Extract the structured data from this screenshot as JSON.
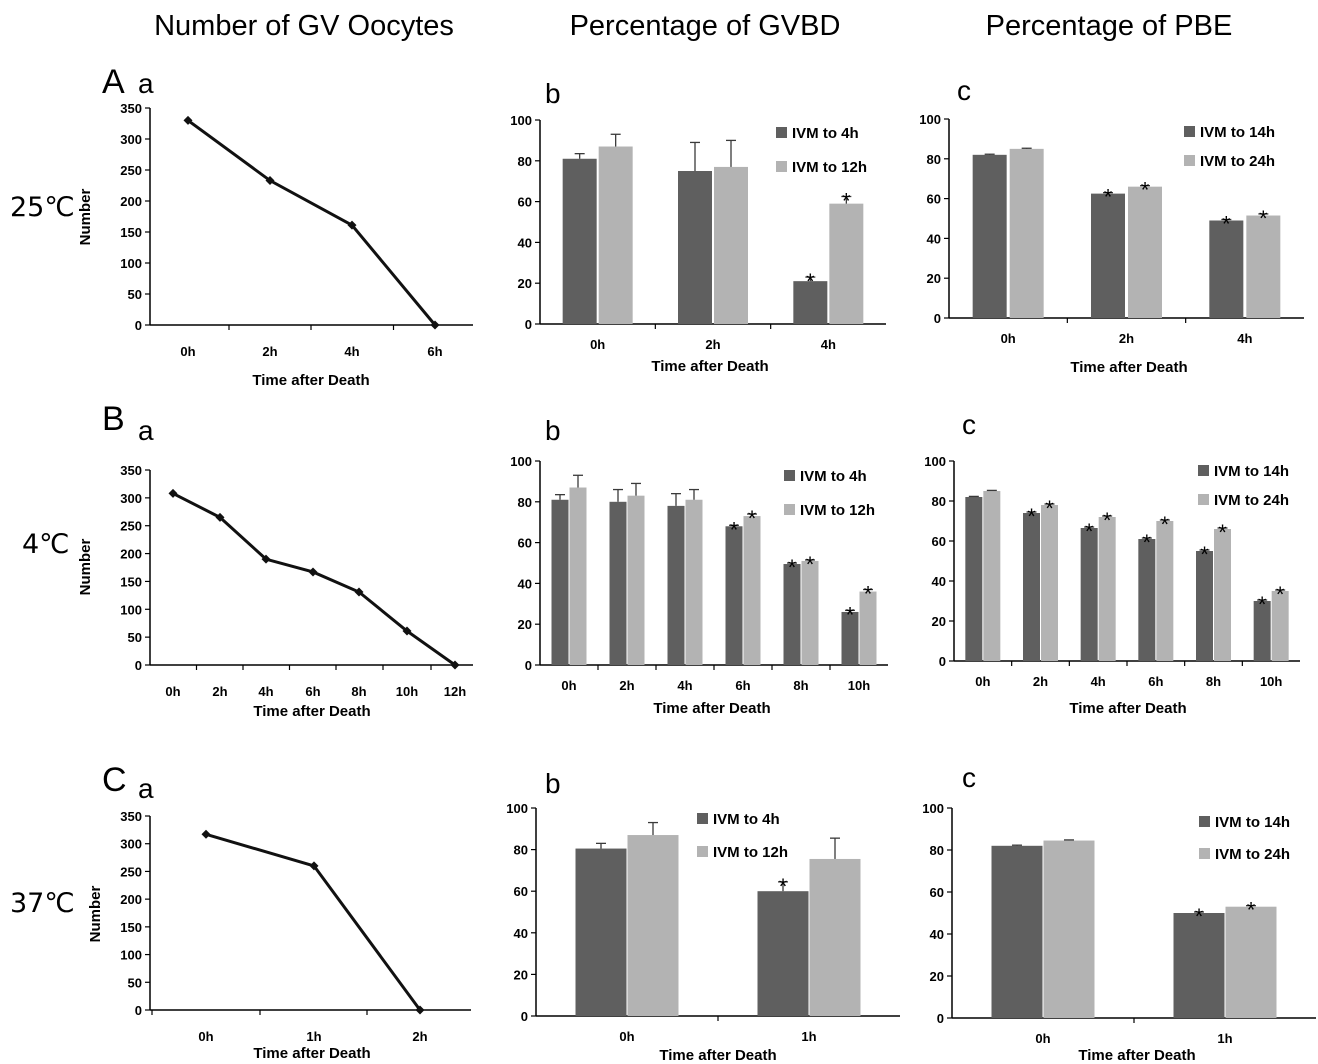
{
  "column_headers": [
    "Number of GV Oocytes",
    "Percentage of GVBD",
    "Percentage of PBE"
  ],
  "colors": {
    "dark_bar": "#5f5f5f",
    "light_bar": "#b3b3b3",
    "line": "#111111"
  },
  "rows": [
    {
      "letter": "A",
      "temperature": "25℃",
      "panels": [
        {
          "sublabel": "a",
          "chart_data": {
            "type": "line",
            "categories": [
              "0h",
              "2h",
              "4h",
              "6h"
            ],
            "values": [
              330,
              233,
              161,
              0
            ],
            "xlabel": "Time after Death",
            "ylabel": "Number",
            "ylim": [
              0,
              350
            ],
            "yticks": [
              0,
              50,
              100,
              150,
              200,
              250,
              300,
              350
            ],
            "ytick_labels": [
              "0",
              "50",
              "100",
              "150",
              "200",
              "250",
              "300",
              "350"
            ]
          }
        },
        {
          "sublabel": "b",
          "chart_data": {
            "type": "bar",
            "categories": [
              "0h",
              "2h",
              "4h"
            ],
            "series": [
              {
                "name": "IVM to 4h",
                "values": [
                  81,
                  75,
                  21
                ],
                "errors": [
                  2.5,
                  14,
                  2
                ],
                "significant": [
                  false,
                  false,
                  true
                ]
              },
              {
                "name": "IVM to 12h",
                "values": [
                  87,
                  77,
                  59
                ],
                "errors": [
                  6,
                  13,
                  3.5
                ],
                "significant": [
                  false,
                  false,
                  true
                ]
              }
            ],
            "xlabel": "Time after Death",
            "ylim": [
              0,
              100
            ],
            "yticks": [
              0,
              20,
              40,
              60,
              80,
              100
            ],
            "ytick_labels": [
              "0",
              "20",
              "40",
              "60",
              "80",
              "100"
            ]
          }
        },
        {
          "sublabel": "c",
          "chart_data": {
            "type": "bar",
            "categories": [
              "0h",
              "2h",
              "4h"
            ],
            "series": [
              {
                "name": "IVM to 14h",
                "values": [
                  82,
                  62.5,
                  49
                ],
                "errors": [
                  0.3,
                  0.5,
                  0.5
                ],
                "significant": [
                  false,
                  true,
                  true
                ]
              },
              {
                "name": "IVM to 24h",
                "values": [
                  85,
                  66,
                  51.5
                ],
                "errors": [
                  0.3,
                  0.5,
                  0.8
                ],
                "significant": [
                  false,
                  true,
                  true
                ]
              }
            ],
            "xlabel": "Time after Death",
            "ylim": [
              0,
              100
            ],
            "yticks": [
              0,
              20,
              40,
              60,
              80,
              100
            ],
            "ytick_labels": [
              "0",
              "20",
              "40",
              "60",
              "80",
              "100"
            ]
          }
        }
      ]
    },
    {
      "letter": "B",
      "temperature": "4℃",
      "panels": [
        {
          "sublabel": "a",
          "chart_data": {
            "type": "line",
            "categories": [
              "0h",
              "2h",
              "4h",
              "6h",
              "8h",
              "10h",
              "12h"
            ],
            "values": [
              308,
              265,
              190,
              167,
              131,
              61,
              0
            ],
            "xlabel": "Time after Death",
            "ylabel": "Number",
            "ylim": [
              0,
              350
            ],
            "yticks": [
              0,
              50,
              100,
              150,
              200,
              250,
              300,
              350
            ],
            "ytick_labels": [
              "0",
              "50",
              "100",
              "150",
              "200",
              "250",
              "300",
              "350"
            ]
          }
        },
        {
          "sublabel": "b",
          "chart_data": {
            "type": "bar",
            "categories": [
              "0h",
              "2h",
              "4h",
              "6h",
              "8h",
              "10h"
            ],
            "series": [
              {
                "name": "IVM to 4h",
                "values": [
                  81,
                  80,
                  78,
                  68,
                  49.5,
                  26
                ],
                "errors": [
                  2.5,
                  6,
                  6,
                  0.5,
                  0.5,
                  0.8
                ],
                "significant": [
                  false,
                  false,
                  false,
                  true,
                  true,
                  true
                ]
              },
              {
                "name": "IVM to 12h",
                "values": [
                  87,
                  83,
                  81,
                  73,
                  51,
                  36
                ],
                "errors": [
                  6,
                  6,
                  5,
                  1,
                  0.5,
                  1
                ],
                "significant": [
                  false,
                  false,
                  false,
                  true,
                  true,
                  true
                ]
              }
            ],
            "xlabel": "Time after Death",
            "ylim": [
              0,
              100
            ],
            "yticks": [
              0,
              20,
              40,
              60,
              80,
              100
            ],
            "ytick_labels": [
              "0",
              "20",
              "40",
              "60",
              "80",
              "100"
            ]
          }
        },
        {
          "sublabel": "c",
          "chart_data": {
            "type": "bar",
            "categories": [
              "0h",
              "2h",
              "4h",
              "6h",
              "8h",
              "10h"
            ],
            "series": [
              {
                "name": "IVM to 14h",
                "values": [
                  82,
                  74,
                  66.5,
                  61,
                  55,
                  30
                ],
                "errors": [
                  0.3,
                  0.5,
                  0.5,
                  0.5,
                  0.5,
                  0.5
                ],
                "significant": [
                  false,
                  true,
                  true,
                  true,
                  true,
                  true
                ]
              },
              {
                "name": "IVM to 24h",
                "values": [
                  85,
                  78,
                  72,
                  70,
                  66,
                  35
                ],
                "errors": [
                  0.3,
                  0.5,
                  0.5,
                  0.5,
                  0.5,
                  0.5
                ],
                "significant": [
                  false,
                  true,
                  true,
                  true,
                  true,
                  true
                ]
              }
            ],
            "xlabel": "Time after Death",
            "ylim": [
              0,
              100
            ],
            "yticks": [
              0,
              20,
              40,
              60,
              80,
              100
            ],
            "ytick_labels": [
              "0",
              "20",
              "40",
              "60",
              "80",
              "100"
            ]
          }
        }
      ]
    },
    {
      "letter": "C",
      "temperature": "37℃",
      "panels": [
        {
          "sublabel": "a",
          "chart_data": {
            "type": "line",
            "categories": [
              "0h",
              "1h",
              "2h"
            ],
            "values": [
              317,
              260,
              0
            ],
            "xlabel": "Time after Death",
            "ylabel": "Number",
            "ylim": [
              0,
              350
            ],
            "yticks": [
              0,
              50,
              100,
              150,
              200,
              250,
              300,
              350
            ],
            "ytick_labels": [
              "0",
              "50",
              "100",
              "150",
              "200",
              "250",
              "300",
              "350"
            ]
          }
        },
        {
          "sublabel": "b",
          "chart_data": {
            "type": "bar",
            "categories": [
              "0h",
              "1h"
            ],
            "series": [
              {
                "name": "IVM to 4h",
                "values": [
                  80.5,
                  60
                ],
                "errors": [
                  2.5,
                  4.5
                ],
                "significant": [
                  false,
                  true
                ]
              },
              {
                "name": "IVM to 12h",
                "values": [
                  87,
                  75.5
                ],
                "errors": [
                  6,
                  10
                ],
                "significant": [
                  false,
                  false
                ]
              }
            ],
            "xlabel": "Time after Death",
            "ylim": [
              0,
              100
            ],
            "yticks": [
              0,
              20,
              40,
              60,
              80,
              100
            ],
            "ytick_labels": [
              "0",
              "20",
              "40",
              "60",
              "80",
              "100"
            ]
          }
        },
        {
          "sublabel": "c",
          "chart_data": {
            "type": "bar",
            "categories": [
              "0h",
              "1h"
            ],
            "series": [
              {
                "name": "IVM to 14h",
                "values": [
                  82,
                  50
                ],
                "errors": [
                  0.3,
                  0.5
                ],
                "significant": [
                  false,
                  true
                ]
              },
              {
                "name": "IVM to 24h",
                "values": [
                  84.5,
                  53
                ],
                "errors": [
                  0.3,
                  0.5
                ],
                "significant": [
                  false,
                  true
                ]
              }
            ],
            "xlabel": "Time after Death",
            "ylim": [
              0,
              100
            ],
            "yticks": [
              0,
              20,
              40,
              60,
              80,
              100
            ],
            "ytick_labels": [
              "0",
              "20",
              "40",
              "60",
              "80",
              "100"
            ]
          }
        }
      ]
    }
  ]
}
